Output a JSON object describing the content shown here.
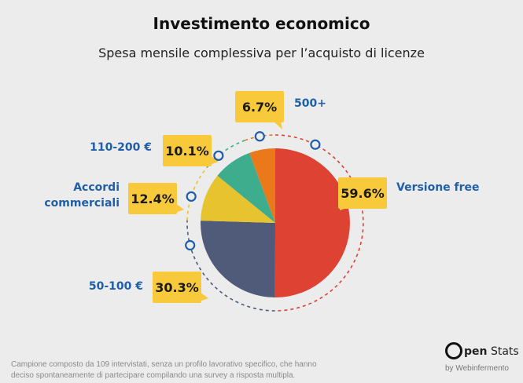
{
  "title": "Investimento economico",
  "subtitle": "Spesa mensile complessiva per l’acquisto di licenze",
  "chart_data": {
    "type": "pie",
    "title": "Investimento economico",
    "subtitle": "Spesa mensile complessiva per l’acquisto di licenze",
    "slices": [
      {
        "label": "Versione free",
        "value": 59.6,
        "value_label": "59.6%",
        "color": "#dd4233"
      },
      {
        "label": "50-100 €",
        "value": 30.3,
        "value_label": "30.3%",
        "color": "#4f5b78"
      },
      {
        "label": "Accordi commerciali",
        "value": 12.4,
        "value_label": "12.4%",
        "color": "#e7c42f"
      },
      {
        "label": "110-200 €",
        "value": 10.1,
        "value_label": "10.1%",
        "color": "#3ead8e"
      },
      {
        "label": "500+",
        "value": 6.7,
        "value_label": "6.7%",
        "color": "#e9791b"
      }
    ],
    "label_box_color": "#f8c93a",
    "category_label_color": "#1f5fa8"
  },
  "footnote": "Campione composto da 109 intervistati, senza un profilo lavorativo specifico, che hanno deciso spontaneamente di partecipare compilando una survey a risposta multipla.",
  "logo": {
    "brand_o": "O",
    "brand_pen": "pen",
    "brand_stats": "Stats",
    "byline": "by Webinfermento"
  }
}
